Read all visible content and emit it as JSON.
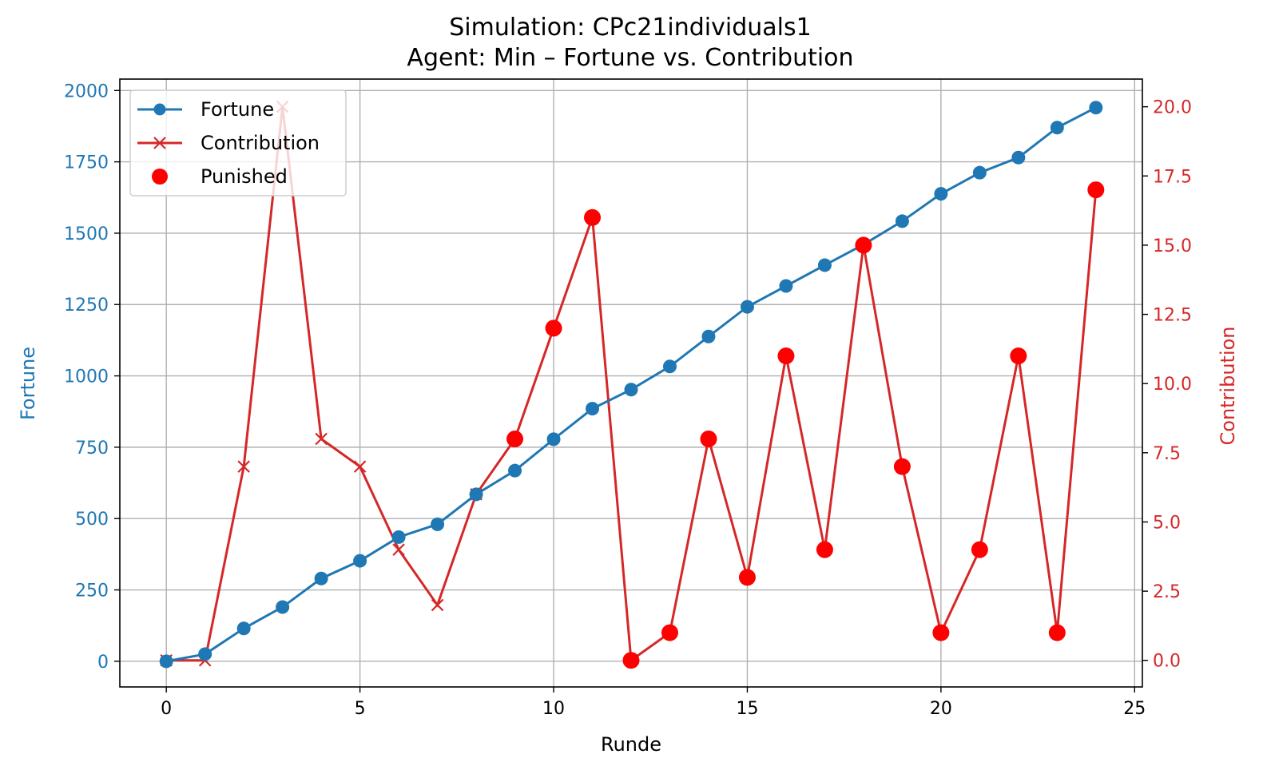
{
  "title_line1": "Simulation: CPc21individuals1",
  "title_line2": "Agent: Min – Fortune vs. Contribution",
  "colors": {
    "fortune": "#1f77b4",
    "contribution": "#d62728",
    "punished": "#ff0000",
    "grid": "#b0b0b0",
    "axis": "#000000"
  },
  "chart_data": {
    "type": "line",
    "xlabel": "Runde",
    "ylabel_left": "Fortune",
    "ylabel_right": "Contribution",
    "xlim": [
      -1.2,
      25.2
    ],
    "ylim_left": [
      -90,
      2040
    ],
    "ylim_right": [
      -0.96,
      21.0
    ],
    "xticks": [
      0,
      5,
      10,
      15,
      20,
      25
    ],
    "yticks_left": [
      0,
      250,
      500,
      750,
      1000,
      1250,
      1500,
      1750,
      2000
    ],
    "yticks_right": [
      0.0,
      2.5,
      5.0,
      7.5,
      10.0,
      12.5,
      15.0,
      17.5,
      20.0
    ],
    "grid": true,
    "legend_position": "top-left",
    "x": [
      0,
      1,
      2,
      3,
      4,
      5,
      6,
      7,
      8,
      9,
      10,
      11,
      12,
      13,
      14,
      15,
      16,
      17,
      18,
      19,
      20,
      21,
      22,
      23,
      24
    ],
    "series": [
      {
        "name": "Fortune",
        "axis": "left",
        "marker": "circle",
        "values": [
          0,
          25,
          115,
          190,
          290,
          352,
          435,
          480,
          585,
          668,
          778,
          885,
          952,
          1033,
          1138,
          1242,
          1315,
          1388,
          1460,
          1542,
          1638,
          1712,
          1765,
          1870,
          1940
        ]
      },
      {
        "name": "Contribution",
        "axis": "right",
        "marker": "x",
        "values": [
          0,
          0,
          7,
          20,
          8,
          7,
          4,
          2,
          6,
          8,
          12,
          16,
          0,
          1,
          8,
          3,
          11,
          4,
          15,
          7,
          1,
          4,
          11,
          1,
          17
        ]
      }
    ],
    "punished": {
      "name": "Punished",
      "axis": "right",
      "x": [
        9,
        10,
        11,
        12,
        13,
        14,
        15,
        16,
        17,
        18,
        19,
        20,
        21,
        22,
        23,
        24
      ],
      "values": [
        8,
        12,
        16,
        0,
        1,
        8,
        3,
        11,
        4,
        15,
        7,
        1,
        4,
        11,
        1,
        17
      ]
    }
  }
}
